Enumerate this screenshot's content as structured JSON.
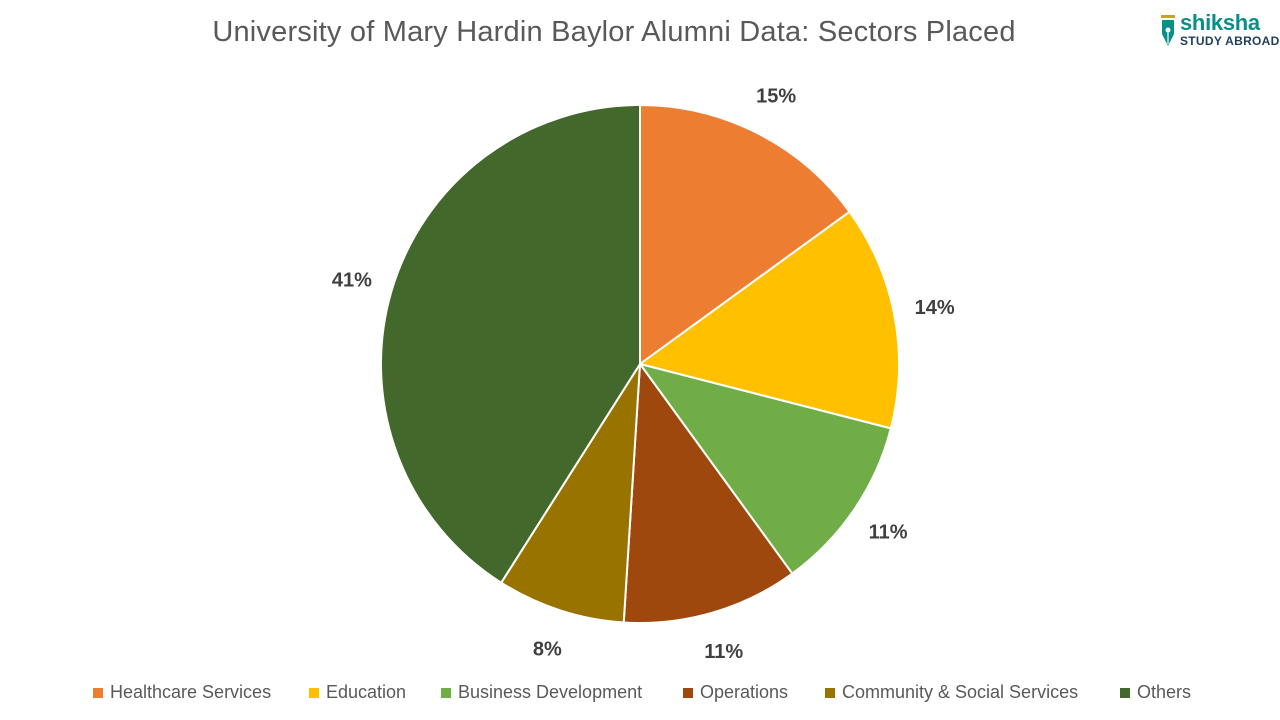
{
  "chart_data": {
    "type": "pie",
    "title": "University of Mary Hardin Baylor  Alumni Data: Sectors Placed",
    "slices": [
      {
        "label": "Healthcare Services",
        "value": 15,
        "display": "15%",
        "color": "#ED7D31"
      },
      {
        "label": "Education",
        "value": 14,
        "display": "14%",
        "color": "#FFC000"
      },
      {
        "label": "Business Development",
        "value": 11,
        "display": "11%",
        "color": "#70AD47"
      },
      {
        "label": "Operations",
        "value": 11,
        "display": "11%",
        "color": "#9E480E"
      },
      {
        "label": "Community & Social Services",
        "value": 8,
        "display": "8%",
        "color": "#997300"
      },
      {
        "label": "Others",
        "value": 41,
        "display": "41%",
        "color": "#43682B"
      }
    ],
    "legend_position": "bottom"
  },
  "branding": {
    "logo_word": "shiksha",
    "logo_subtitle": "STUDY ABROAD"
  }
}
